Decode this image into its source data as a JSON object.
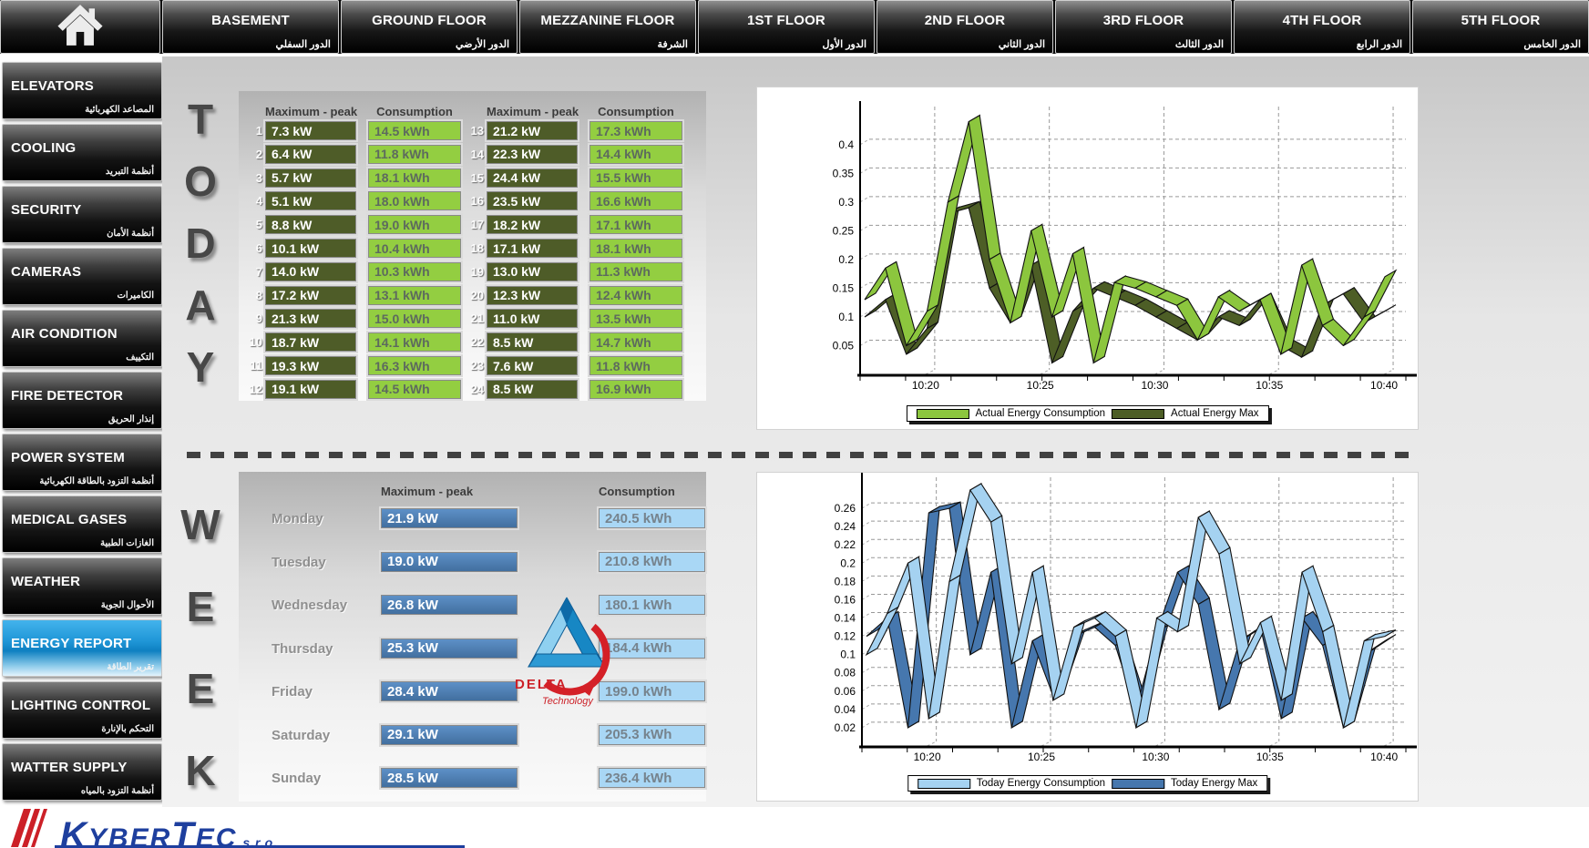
{
  "top_nav": {
    "home_icon": "home-icon",
    "floors": [
      {
        "label": "BASEMENT",
        "label_ar": "الدور السفلي"
      },
      {
        "label": "GROUND FLOOR",
        "label_ar": "الدور الأرضي"
      },
      {
        "label": "MEZZANINE FLOOR",
        "label_ar": "الشرفة"
      },
      {
        "label": "1ST FLOOR",
        "label_ar": "الدور الأول"
      },
      {
        "label": "2ND FLOOR",
        "label_ar": "الدور الثاني"
      },
      {
        "label": "3RD FLOOR",
        "label_ar": "الدور الثالث"
      },
      {
        "label": "4TH FLOOR",
        "label_ar": "الدور الرابع"
      },
      {
        "label": "5TH FLOOR",
        "label_ar": "الدور الخامس"
      }
    ]
  },
  "sidebar": {
    "items": [
      {
        "label": "ELEVATORS",
        "label_ar": "المصاعد الكهربائية",
        "selected": false
      },
      {
        "label": "COOLING",
        "label_ar": "أنظمة التبريد",
        "selected": false
      },
      {
        "label": "SECURITY",
        "label_ar": "أنظمة الأمان",
        "selected": false
      },
      {
        "label": "CAMERAS",
        "label_ar": "الكاميرات",
        "selected": false
      },
      {
        "label": "AIR CONDITION",
        "label_ar": "التكييف",
        "selected": false
      },
      {
        "label": "FIRE DETECTOR",
        "label_ar": "إنذار الحريق",
        "selected": false
      },
      {
        "label": "POWER SYSTEM",
        "label_ar": "أنظمة التزود بالطاقة الكهربائية",
        "selected": false
      },
      {
        "label": "MEDICAL GASES",
        "label_ar": "الغازات الطبية",
        "selected": false
      },
      {
        "label": "WEATHER",
        "label_ar": "الأحوال الجوية",
        "selected": false
      },
      {
        "label": "ENERGY REPORT",
        "label_ar": "تقرير الطاقة",
        "selected": true
      },
      {
        "label": "LIGHTING CONTROL",
        "label_ar": "التحكم بالإنارة",
        "selected": false
      },
      {
        "label": "WATTER SUPPLY",
        "label_ar": "أنظمة التزود بالمياه",
        "selected": false
      }
    ]
  },
  "today": {
    "title": "TODAY",
    "headers": {
      "max": "Maximum - peak",
      "cons": "Consumption"
    },
    "rows": [
      {
        "n": "1",
        "max": "7.3 kW",
        "cons": "14.5 kWh"
      },
      {
        "n": "2",
        "max": "6.4 kW",
        "cons": "11.8 kWh"
      },
      {
        "n": "3",
        "max": "5.7 kW",
        "cons": "18.1 kWh"
      },
      {
        "n": "4",
        "max": "5.1 kW",
        "cons": "18.0 kWh"
      },
      {
        "n": "5",
        "max": "8.8 kW",
        "cons": "19.0 kWh"
      },
      {
        "n": "6",
        "max": "10.1 kW",
        "cons": "10.4 kWh"
      },
      {
        "n": "7",
        "max": "14.0 kW",
        "cons": "10.3 kWh"
      },
      {
        "n": "8",
        "max": "17.2 kW",
        "cons": "13.1 kWh"
      },
      {
        "n": "9",
        "max": "21.3 kW",
        "cons": "15.0 kWh"
      },
      {
        "n": "10",
        "max": "18.7 kW",
        "cons": "14.1 kWh"
      },
      {
        "n": "11",
        "max": "19.3 kW",
        "cons": "16.3 kWh"
      },
      {
        "n": "12",
        "max": "19.1 kW",
        "cons": "14.5 kWh"
      },
      {
        "n": "13",
        "max": "21.2 kW",
        "cons": "17.3 kWh"
      },
      {
        "n": "14",
        "max": "22.3 kW",
        "cons": "14.4 kWh"
      },
      {
        "n": "15",
        "max": "24.4 kW",
        "cons": "15.5 kWh"
      },
      {
        "n": "16",
        "max": "23.5 kW",
        "cons": "16.6 kWh"
      },
      {
        "n": "17",
        "max": "18.2 kW",
        "cons": "17.1 kWh"
      },
      {
        "n": "18",
        "max": "17.1 kW",
        "cons": "18.1 kWh"
      },
      {
        "n": "19",
        "max": "13.0 kW",
        "cons": "11.3 kWh"
      },
      {
        "n": "20",
        "max": "12.3 kW",
        "cons": "12.4 kWh"
      },
      {
        "n": "21",
        "max": "11.0 kW",
        "cons": "13.5 kWh"
      },
      {
        "n": "22",
        "max": "8.5 kW",
        "cons": "14.7 kWh"
      },
      {
        "n": "23",
        "max": "7.6 kW",
        "cons": "11.8 kWh"
      },
      {
        "n": "24",
        "max": "8.5 kW",
        "cons": "16.9 kWh"
      }
    ]
  },
  "week": {
    "title": "WEEK",
    "headers": {
      "max": "Maximum - peak",
      "cons": "Consumption"
    },
    "rows": [
      {
        "day": "Monday",
        "max": "21.9 kW",
        "cons": "240.5 kWh"
      },
      {
        "day": "Tuesday",
        "max": "19.0 kW",
        "cons": "210.8 kWh"
      },
      {
        "day": "Wednesday",
        "max": "26.8 kW",
        "cons": "180.1 kWh"
      },
      {
        "day": "Thursday",
        "max": "25.3 kW",
        "cons": "184.4 kWh"
      },
      {
        "day": "Friday",
        "max": "28.4 kW",
        "cons": "199.0 kWh"
      },
      {
        "day": "Saturday",
        "max": "29.1 kW",
        "cons": "205.3 kWh"
      },
      {
        "day": "Sunday",
        "max": "28.5 kW",
        "cons": "236.4 kWh"
      }
    ]
  },
  "chart_data": [
    {
      "id": "today-energy-chart",
      "type": "line",
      "style": "3d-ribbon",
      "x_ticks": [
        "10:20",
        "10:25",
        "10:30",
        "10:35",
        "10:40"
      ],
      "y_ticks": [
        0.05,
        0.1,
        0.15,
        0.2,
        0.25,
        0.3,
        0.35,
        0.4
      ],
      "ylim": [
        0,
        0.46
      ],
      "grid": true,
      "legend_position": "bottom",
      "series": [
        {
          "name": "Actual Energy Consumption",
          "color": "#8cc63e",
          "values": [
            0.13,
            0.185,
            0.05,
            0.11,
            0.3,
            0.44,
            0.2,
            0.09,
            0.25,
            0.1,
            0.21,
            0.02,
            0.16,
            0.15,
            0.135,
            0.12,
            0.06,
            0.135,
            0.11,
            0.13,
            0.035,
            0.19,
            0.085,
            0.05,
            0.1,
            0.17
          ]
        },
        {
          "name": "Actual Energy Max",
          "color": "#4d5e26",
          "values": [
            0.1,
            0.13,
            0.035,
            0.08,
            0.28,
            0.29,
            0.15,
            0.09,
            0.19,
            0.02,
            0.11,
            0.15,
            0.135,
            0.12,
            0.1,
            0.08,
            0.06,
            0.1,
            0.085,
            0.13,
            0.05,
            0.03,
            0.12,
            0.14,
            0.09,
            0.11
          ]
        }
      ]
    },
    {
      "id": "week-energy-chart",
      "type": "line",
      "style": "3d-ribbon",
      "x_ticks": [
        "10:20",
        "10:25",
        "10:30",
        "10:35",
        "10:40"
      ],
      "y_ticks": [
        0.02,
        0.04,
        0.06,
        0.08,
        0.1,
        0.12,
        0.14,
        0.16,
        0.18,
        0.2,
        0.22,
        0.24,
        0.26
      ],
      "ylim": [
        0,
        0.29
      ],
      "grid": true,
      "legend_position": "bottom",
      "series": [
        {
          "name": "Today Energy Consumption",
          "color": "#a5d2f1",
          "values": [
            0.1,
            0.145,
            0.2,
            0.03,
            0.18,
            0.28,
            0.245,
            0.09,
            0.19,
            0.05,
            0.13,
            0.14,
            0.12,
            0.02,
            0.14,
            0.125,
            0.25,
            0.21,
            0.09,
            0.135,
            0.05,
            0.19,
            0.125,
            0.02,
            0.115,
            0.12
          ]
        },
        {
          "name": "Today Energy Max",
          "color": "#4677ae",
          "values": [
            0.12,
            0.14,
            0.02,
            0.255,
            0.26,
            0.1,
            0.19,
            0.02,
            0.115,
            0.055,
            0.12,
            0.13,
            0.11,
            0.04,
            0.125,
            0.19,
            0.155,
            0.04,
            0.115,
            0.13,
            0.03,
            0.14,
            0.11,
            0.02,
            0.1,
            0.115
          ]
        }
      ]
    }
  ],
  "delta_logo": {
    "line1": "DELTA",
    "line2": "Technology"
  },
  "footer": {
    "k1": "K",
    "k2": "YBER",
    "k3": "T",
    "k4": "EC",
    "suffix": "s.r.o."
  }
}
